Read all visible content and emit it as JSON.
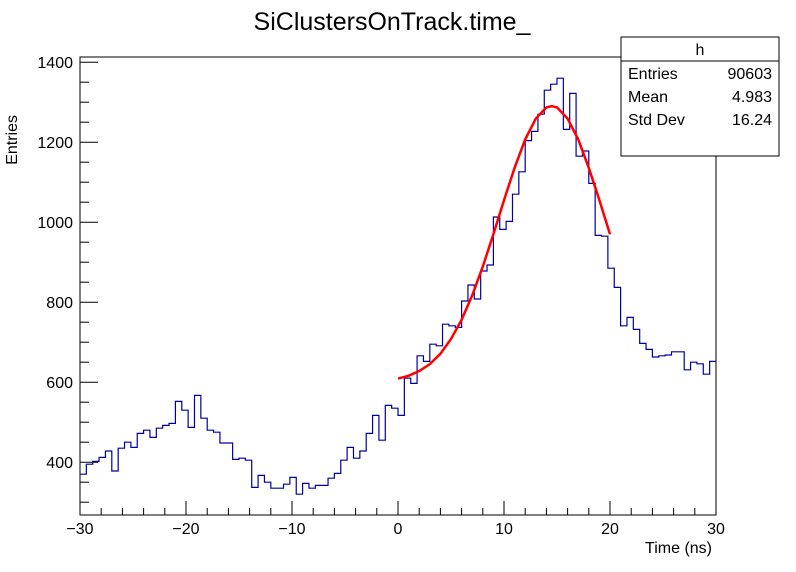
{
  "chart_data": {
    "type": "histogram",
    "title": "SiClustersOnTrack.time_",
    "xlabel": "Time (ns)",
    "ylabel": "Entries",
    "xlim": [
      -30,
      30
    ],
    "ylim": [
      268,
      1413
    ],
    "bins": 100,
    "bin_width": 0.6,
    "x_ticks": [
      -30,
      -20,
      -10,
      0,
      10,
      20,
      30
    ],
    "x_tick_labels": [
      "−30",
      "−20",
      "−10",
      "0",
      "10",
      "20",
      "30"
    ],
    "y_ticks": [
      400,
      600,
      800,
      1000,
      1200,
      1400
    ],
    "y_tick_labels": [
      "400",
      "600",
      "800",
      "1000",
      "1200",
      "1400"
    ],
    "values": [
      370,
      395,
      402,
      412,
      428,
      378,
      435,
      450,
      437,
      472,
      480,
      462,
      485,
      492,
      497,
      552,
      530,
      487,
      567,
      510,
      480,
      475,
      448,
      448,
      407,
      410,
      405,
      337,
      367,
      350,
      335,
      335,
      345,
      362,
      320,
      347,
      335,
      342,
      342,
      360,
      372,
      405,
      437,
      410,
      428,
      472,
      517,
      455,
      542,
      535,
      517,
      610,
      597,
      666,
      652,
      695,
      691,
      745,
      741,
      737,
      803,
      843,
      808,
      878,
      893,
      1013,
      982,
      1002,
      1070,
      1126,
      1204,
      1227,
      1270,
      1330,
      1345,
      1360,
      1232,
      1322,
      1165,
      1178,
      1097,
      967,
      965,
      885,
      837,
      741,
      762,
      732,
      697,
      682,
      663,
      666,
      668,
      676,
      676,
      631,
      650,
      646,
      620,
      652
    ],
    "fit": {
      "x": [
        0,
        1,
        2,
        3,
        4,
        5,
        6,
        7,
        8,
        9,
        10,
        11,
        12,
        13,
        14,
        14.5,
        15,
        16,
        17,
        18,
        19,
        20
      ],
      "y": [
        609,
        616,
        628,
        645,
        671,
        708,
        756,
        817,
        889,
        970,
        1055,
        1136,
        1207,
        1259,
        1287,
        1290,
        1287,
        1259,
        1207,
        1136,
        1055,
        970
      ]
    },
    "colors": {
      "histogram": "#0000a0",
      "fit": "#ff0000"
    },
    "grid": false,
    "stats_box": {
      "name": "h",
      "rows": [
        {
          "label": "Entries",
          "value": "90603"
        },
        {
          "label": "Mean",
          "value": "4.983"
        },
        {
          "label": "Std Dev",
          "value": "16.24"
        }
      ],
      "placement": "top-right"
    }
  }
}
